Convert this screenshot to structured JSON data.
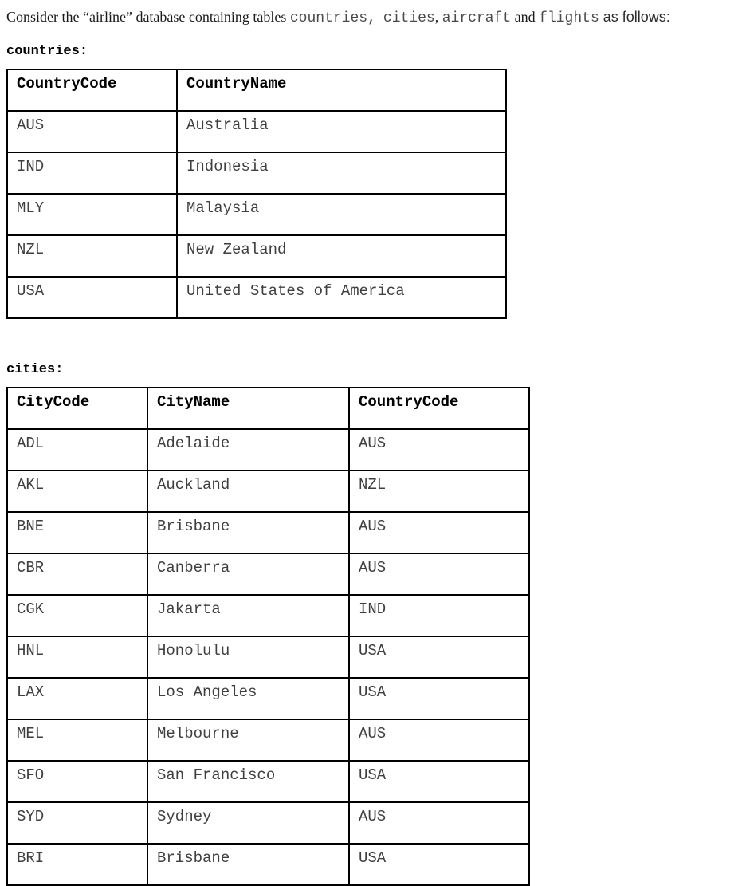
{
  "intro": {
    "segments": [
      {
        "kind": "serif",
        "text": "Consider the “airline” database containing tables "
      },
      {
        "kind": "code",
        "text": "countries,"
      },
      {
        "kind": "serif",
        "text": "  "
      },
      {
        "kind": "code",
        "text": "cities"
      },
      {
        "kind": "serif",
        "text": ", "
      },
      {
        "kind": "code",
        "text": "aircraft"
      },
      {
        "kind": "serif",
        "text": " and "
      },
      {
        "kind": "code",
        "text": "flights"
      },
      {
        "kind": "sans",
        "text": " as follows:"
      }
    ]
  },
  "tables": [
    {
      "id": "countries",
      "label": "countries:",
      "columns": [
        "CountryCode",
        "CountryName"
      ],
      "rows": [
        [
          "AUS",
          "Australia"
        ],
        [
          "IND",
          "Indonesia"
        ],
        [
          "MLY",
          "Malaysia"
        ],
        [
          "NZL",
          "New Zealand"
        ],
        [
          "USA",
          "United States of America"
        ]
      ]
    },
    {
      "id": "cities",
      "label": "cities:",
      "columns": [
        "CityCode",
        "CityName",
        "CountryCode"
      ],
      "rows": [
        [
          "ADL",
          "Adelaide",
          "AUS"
        ],
        [
          "AKL",
          "Auckland",
          "NZL"
        ],
        [
          "BNE",
          "Brisbane",
          "AUS"
        ],
        [
          "CBR",
          "Canberra",
          "AUS"
        ],
        [
          "CGK",
          "Jakarta",
          "IND"
        ],
        [
          "HNL",
          "Honolulu",
          "USA"
        ],
        [
          "LAX",
          "Los Angeles",
          "USA"
        ],
        [
          "MEL",
          "Melbourne",
          "AUS"
        ],
        [
          "SFO",
          "San Francisco",
          "USA"
        ],
        [
          "SYD",
          "Sydney",
          "AUS"
        ],
        [
          "BRI",
          "Brisbane",
          "USA"
        ]
      ]
    }
  ],
  "colors": {
    "background": "#ffffff",
    "border": "#000000",
    "header_text": "#000000",
    "data_text": "#3f3f3f"
  }
}
